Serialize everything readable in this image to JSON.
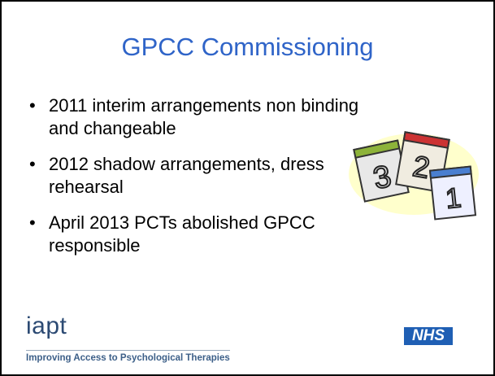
{
  "header": {
    "title": "GPCC Commissioning"
  },
  "bullets": [
    "2011 interim arrangements non binding and changeable",
    "2012 shadow arrangements, dress rehearsal",
    "April 2013 PCTs abolished GPCC responsible"
  ],
  "calendar": {
    "pages": [
      "3",
      "2",
      "1"
    ]
  },
  "footer": {
    "logo": "iapt",
    "tagline": "Improving Access to Psychological Therapies",
    "nhs": "NHS"
  }
}
